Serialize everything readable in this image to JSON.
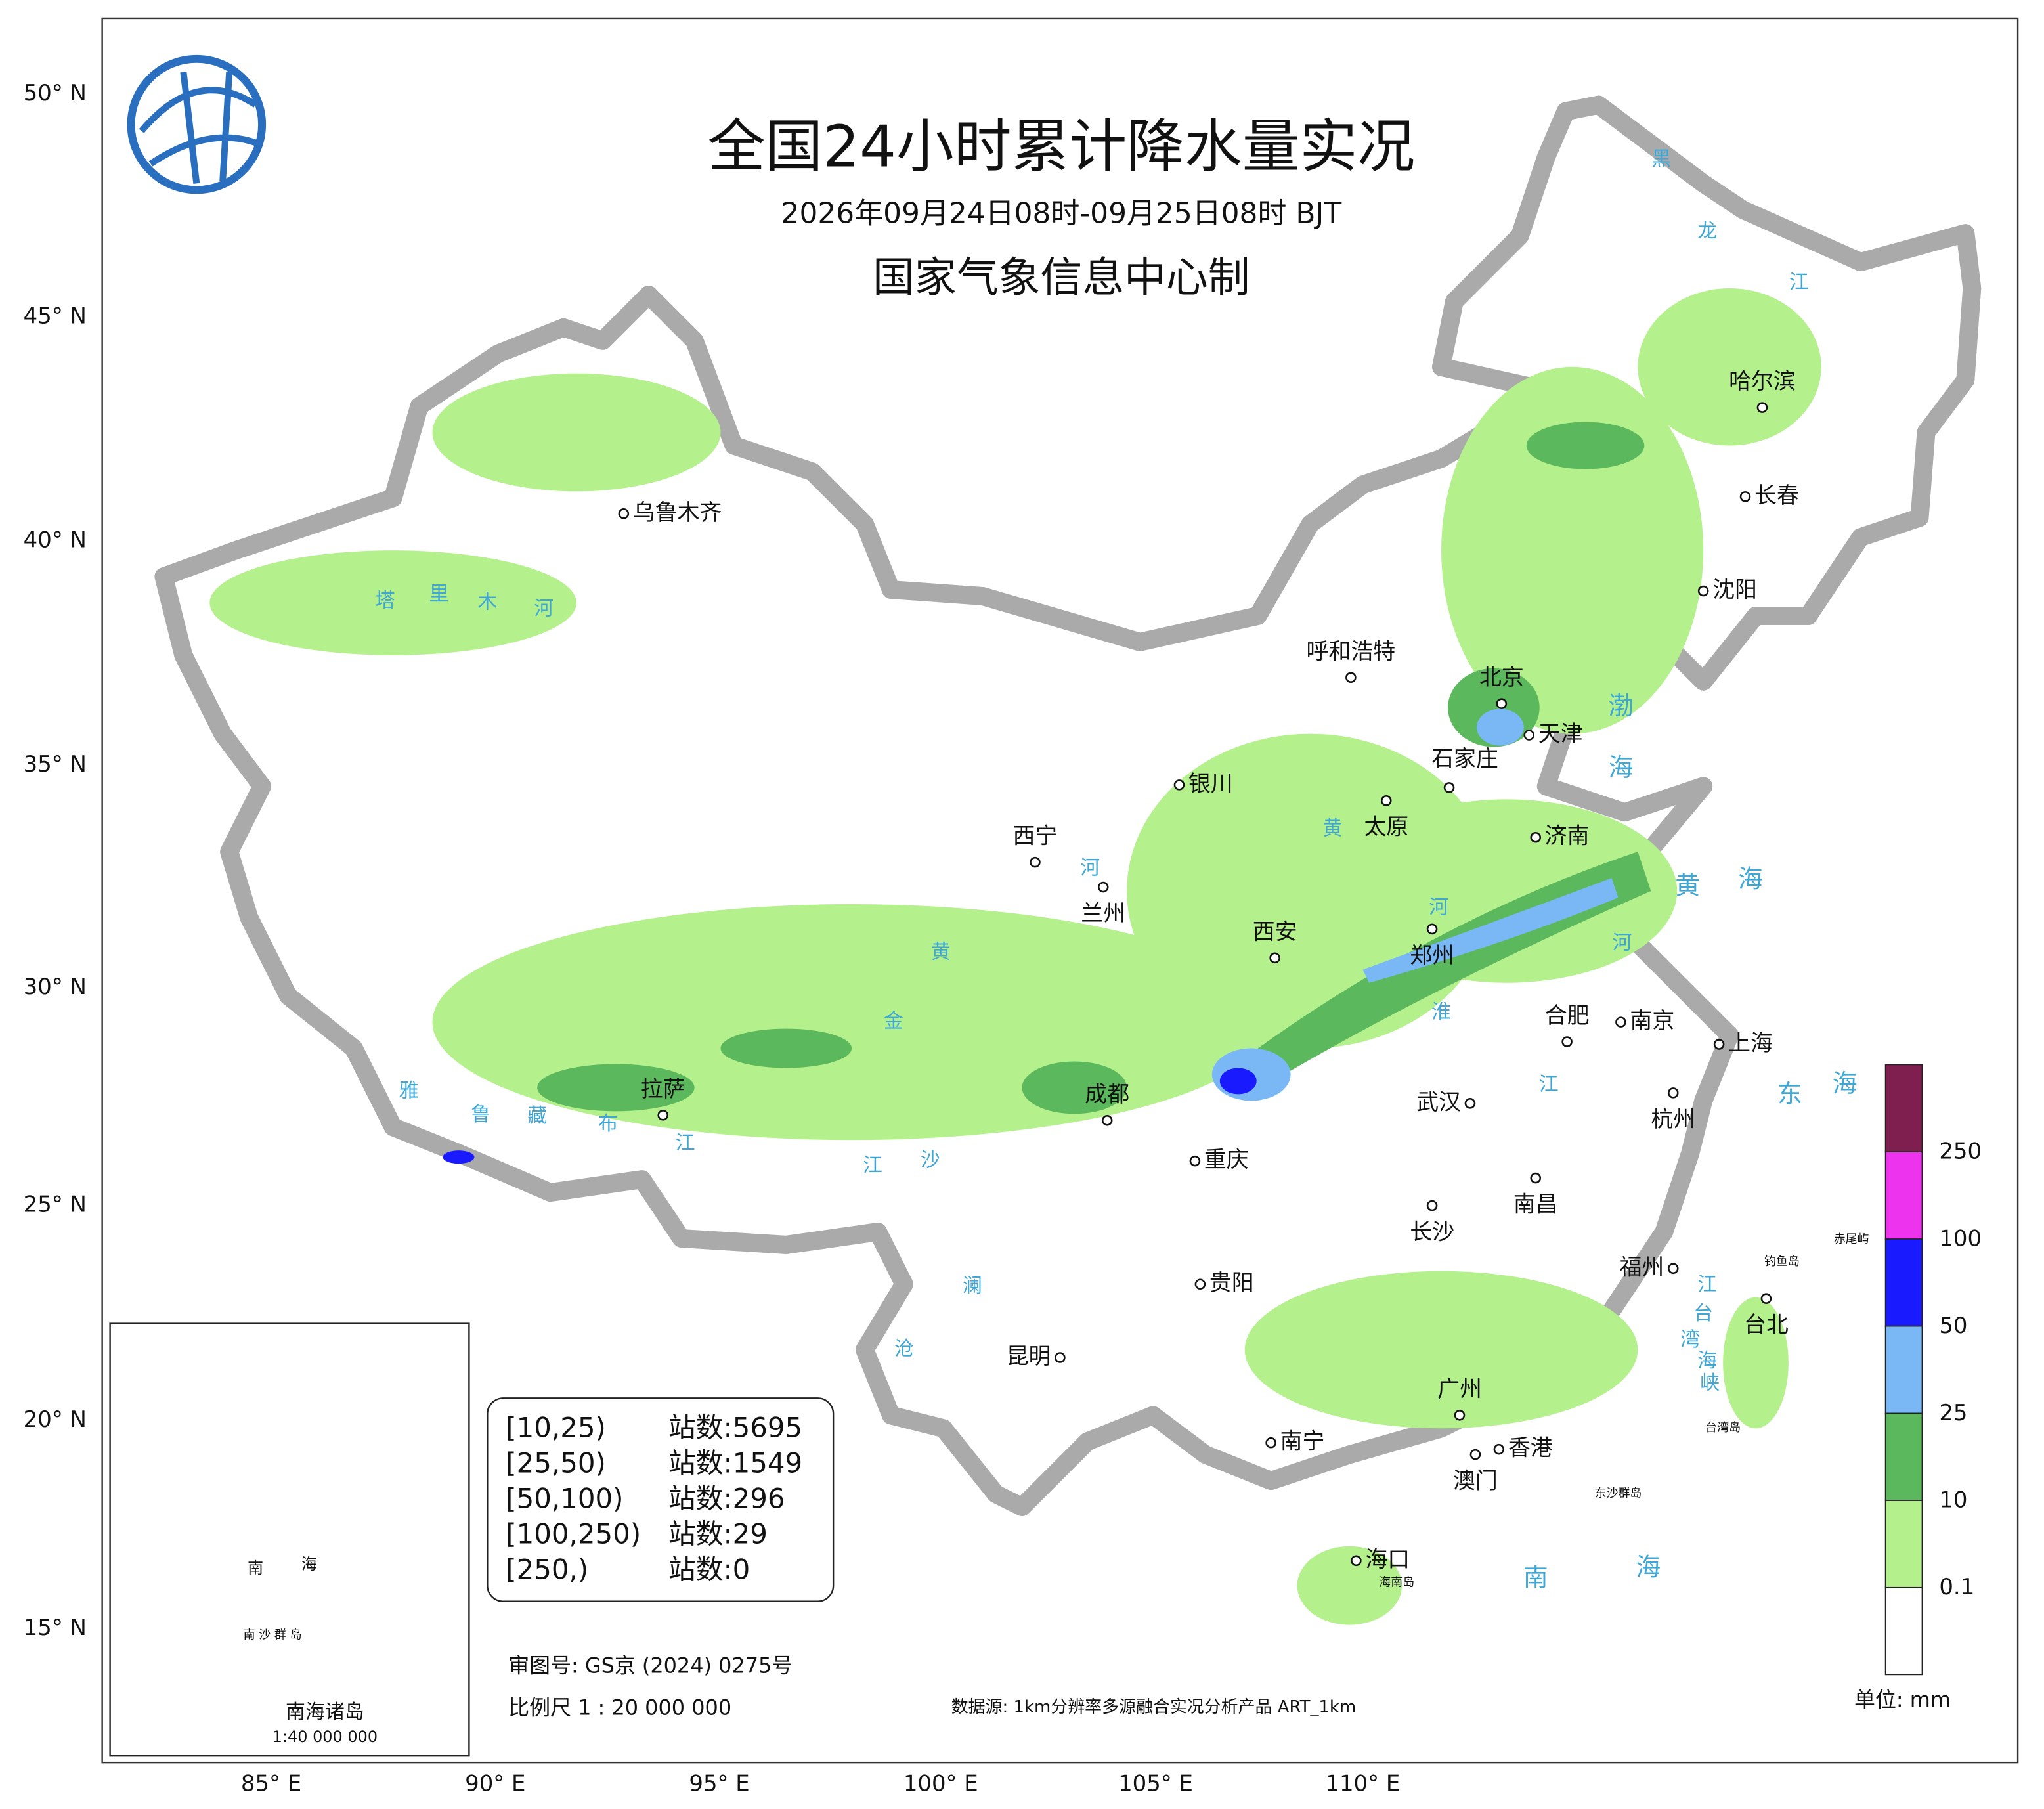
{
  "header": {
    "title": "全国24小时累计降水量实况",
    "subtitle": "2026年09月24日08时-09月25日08时 BJT",
    "producer": "国家气象信息中心制"
  },
  "latitude_labels": [
    "50° N",
    "45° N",
    "40° N",
    "35° N",
    "30° N",
    "25° N",
    "20° N",
    "15° N"
  ],
  "longitude_labels": [
    "85° E",
    "90° E",
    "95° E",
    "100° E",
    "105° E",
    "110° E"
  ],
  "cities": [
    "乌鲁木齐",
    "哈尔滨",
    "长春",
    "沈阳",
    "呼和浩特",
    "北京",
    "天津",
    "石家庄",
    "银川",
    "太原",
    "济南",
    "西宁",
    "兰州",
    "西安",
    "郑州",
    "合肥",
    "南京",
    "上海",
    "拉萨",
    "成都",
    "武汉",
    "杭州",
    "重庆",
    "长沙",
    "南昌",
    "贵阳",
    "福州",
    "台北",
    "昆明",
    "广州",
    "南宁",
    "香港",
    "澳门",
    "海口"
  ],
  "rivers": [
    "塔",
    "里",
    "木",
    "河",
    "黑",
    "龙",
    "江",
    "黄",
    "河",
    "黄",
    "河",
    "淮",
    "河",
    "江",
    "雅",
    "鲁",
    "藏",
    "布",
    "江",
    "金",
    "沙",
    "江",
    "澜",
    "沧",
    "江",
    "台",
    "湾",
    "海",
    "峡"
  ],
  "seas": [
    "渤",
    "海",
    "黄",
    "海",
    "东",
    "海",
    "南",
    "海"
  ],
  "islands": [
    "钓鱼岛",
    "赤尾屿",
    "台湾岛",
    "东沙群岛",
    "海南岛"
  ],
  "stats": {
    "rows": [
      [
        "[10,25)",
        "站数:5695"
      ],
      [
        "[25,50)",
        "站数:1549"
      ],
      [
        "[50,100)",
        "站数:296"
      ],
      [
        "[100,250)",
        "站数:29"
      ],
      [
        "[250,)",
        "站数:0"
      ]
    ]
  },
  "legend": {
    "ticks": [
      "0.1",
      "10",
      "25",
      "50",
      "100",
      "250"
    ],
    "unit": "单位: mm"
  },
  "footer": {
    "approval": "审图号: GS京 (2024) 0275号",
    "scale": "比例尺 1 : 20 000 000",
    "source": "数据源: 1km分辨率多源融合实况分析产品 ART_1km"
  },
  "inset": {
    "title": "南海诸岛",
    "scale": "1:40 000 000",
    "sea_chars": [
      "南",
      "海"
    ],
    "label": "南 沙 群 岛"
  }
}
